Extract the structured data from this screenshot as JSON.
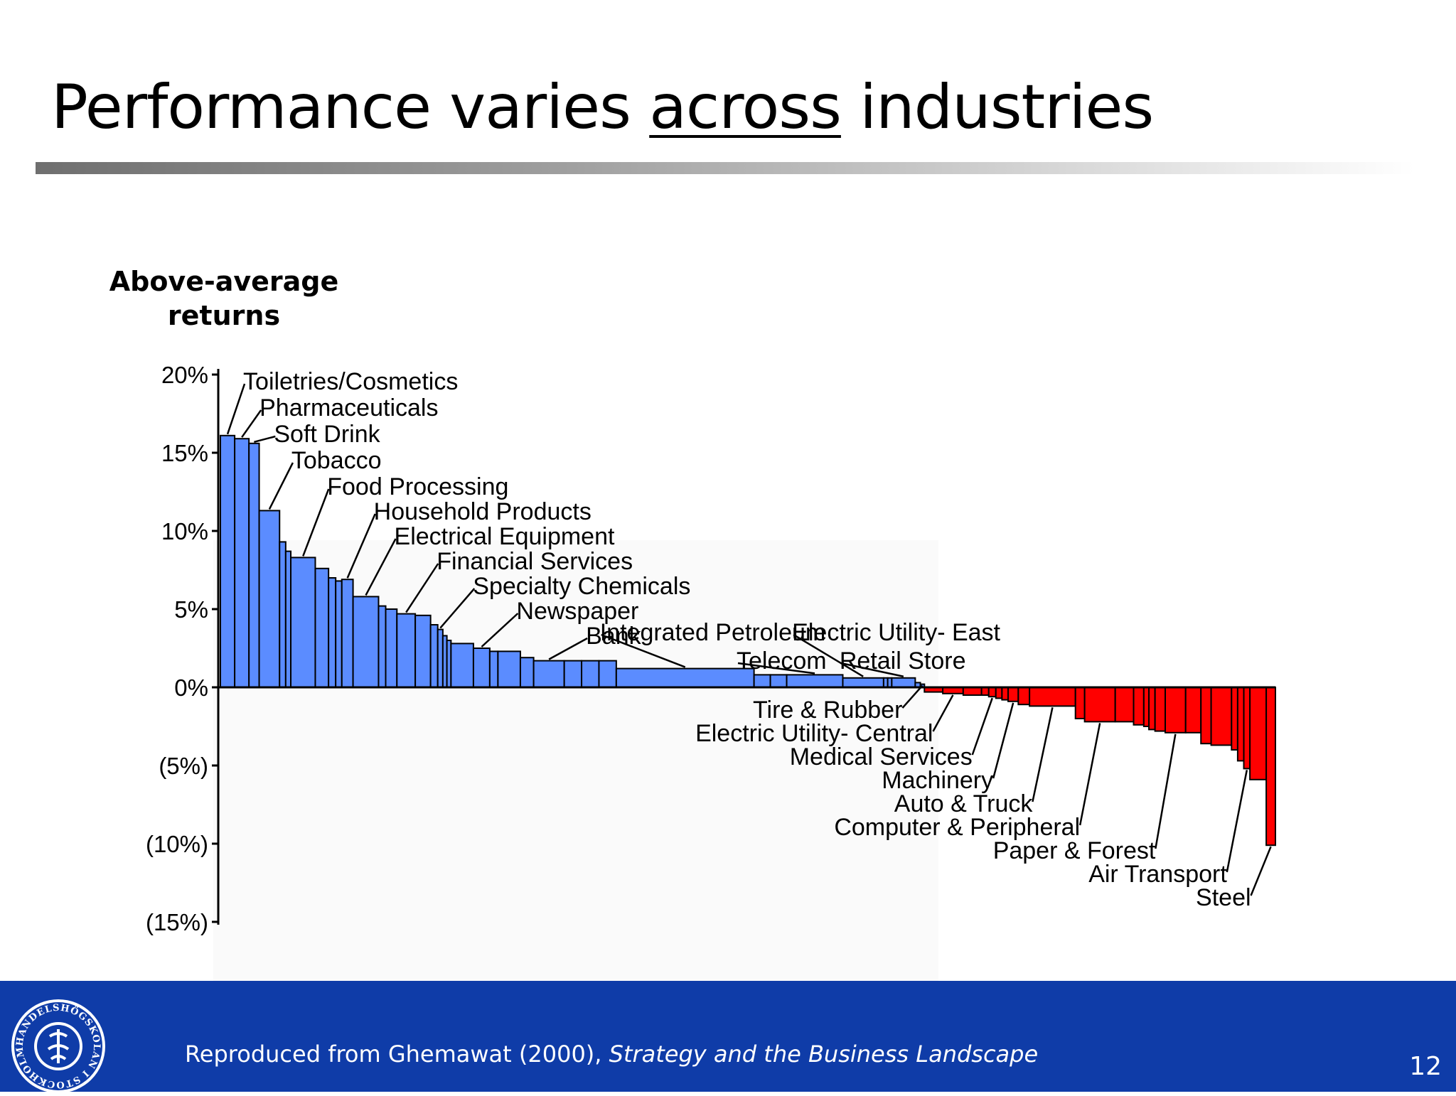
{
  "slide": {
    "title_before": "Performance varies ",
    "title_underlined": "across",
    "title_after": " industries",
    "page_number": "12"
  },
  "footer": {
    "source_prefix": "Reproduced from Ghemawat (2000), ",
    "source_title": "Strategy and the Business Landscape",
    "logo_text": "HANDELSHÖGSKOLAN I STOCKHOLM"
  },
  "colors": {
    "positive": "#5b8cff",
    "negative": "#ff0000",
    "footer": "#0f3ca8"
  },
  "chart_data": {
    "type": "bar",
    "title": "",
    "ylabel": "Above-average returns",
    "ylim": [
      -15,
      20
    ],
    "y_ticks": [
      20,
      15,
      10,
      5,
      0,
      -5,
      -10,
      -15
    ],
    "y_tick_labels": [
      "20%",
      "15%",
      "10%",
      "5%",
      "0%",
      "(5%)",
      "(10%)",
      "(15%)"
    ],
    "bar_width_meaning": "relative industry size",
    "grid": false,
    "legend": "none",
    "bars": [
      {
        "w": 1.4,
        "v": 16.1
      },
      {
        "w": 1.4,
        "v": 15.9
      },
      {
        "w": 1.0,
        "v": 15.6
      },
      {
        "w": 2.0,
        "v": 11.3
      },
      {
        "w": 0.6,
        "v": 9.3
      },
      {
        "w": 0.5,
        "v": 8.7
      },
      {
        "w": 2.4,
        "v": 8.3
      },
      {
        "w": 1.3,
        "v": 7.6
      },
      {
        "w": 0.7,
        "v": 7.0
      },
      {
        "w": 0.6,
        "v": 6.8
      },
      {
        "w": 1.1,
        "v": 6.9
      },
      {
        "w": 2.5,
        "v": 5.8
      },
      {
        "w": 0.7,
        "v": 5.2
      },
      {
        "w": 1.1,
        "v": 5.0
      },
      {
        "w": 1.8,
        "v": 4.7
      },
      {
        "w": 1.5,
        "v": 4.6
      },
      {
        "w": 0.7,
        "v": 4.0
      },
      {
        "w": 0.5,
        "v": 3.7
      },
      {
        "w": 0.4,
        "v": 3.3
      },
      {
        "w": 0.4,
        "v": 3.0
      },
      {
        "w": 2.2,
        "v": 2.8
      },
      {
        "w": 1.6,
        "v": 2.5
      },
      {
        "w": 0.8,
        "v": 2.3
      },
      {
        "w": 2.2,
        "v": 2.3
      },
      {
        "w": 1.3,
        "v": 1.9
      },
      {
        "w": 3.0,
        "v": 1.7
      },
      {
        "w": 1.7,
        "v": 1.7
      },
      {
        "w": 1.7,
        "v": 1.7
      },
      {
        "w": 1.7,
        "v": 1.7
      },
      {
        "w": 13.5,
        "v": 1.2
      },
      {
        "w": 1.6,
        "v": 0.8
      },
      {
        "w": 1.6,
        "v": 0.8
      },
      {
        "w": 5.5,
        "v": 0.8
      },
      {
        "w": 4.0,
        "v": 0.6
      },
      {
        "w": 0.4,
        "v": 0.6
      },
      {
        "w": 0.4,
        "v": 0.6
      },
      {
        "w": 2.3,
        "v": 0.6
      },
      {
        "w": 0.5,
        "v": 0.3
      },
      {
        "w": 0.4,
        "v": 0.2
      },
      {
        "w": 1.8,
        "v": -0.3
      },
      {
        "w": 2.0,
        "v": -0.4
      },
      {
        "w": 1.8,
        "v": -0.5
      },
      {
        "w": 0.7,
        "v": -0.5
      },
      {
        "w": 0.7,
        "v": -0.6
      },
      {
        "w": 0.6,
        "v": -0.7
      },
      {
        "w": 0.6,
        "v": -0.8
      },
      {
        "w": 1.0,
        "v": -0.9
      },
      {
        "w": 1.1,
        "v": -1.1
      },
      {
        "w": 4.5,
        "v": -1.2
      },
      {
        "w": 0.9,
        "v": -2.0
      },
      {
        "w": 3.0,
        "v": -2.2
      },
      {
        "w": 1.8,
        "v": -2.2
      },
      {
        "w": 1.0,
        "v": -2.4
      },
      {
        "w": 0.5,
        "v": -2.5
      },
      {
        "w": 0.6,
        "v": -2.7
      },
      {
        "w": 1.0,
        "v": -2.8
      },
      {
        "w": 2.0,
        "v": -2.9
      },
      {
        "w": 1.5,
        "v": -2.9
      },
      {
        "w": 1.0,
        "v": -3.6
      },
      {
        "w": 2.0,
        "v": -3.7
      },
      {
        "w": 0.6,
        "v": -4.0
      },
      {
        "w": 0.6,
        "v": -4.7
      },
      {
        "w": 0.6,
        "v": -5.2
      },
      {
        "w": 1.6,
        "v": -5.9
      },
      {
        "w": 0.9,
        "v": -10.1
      }
    ],
    "labels": [
      {
        "text": "Toiletries/Cosmetics",
        "bar": 0,
        "side": "up"
      },
      {
        "text": "Pharmaceuticals",
        "bar": 1,
        "side": "up"
      },
      {
        "text": "Soft Drink",
        "bar": 2,
        "side": "up"
      },
      {
        "text": "Tobacco",
        "bar": 3,
        "side": "up"
      },
      {
        "text": "Food Processing",
        "bar": 6,
        "side": "up"
      },
      {
        "text": "Household Products",
        "bar": 10,
        "side": "up"
      },
      {
        "text": "Electrical Equipment",
        "bar": 11,
        "side": "up"
      },
      {
        "text": "Financial Services",
        "bar": 14,
        "side": "up"
      },
      {
        "text": "Specialty Chemicals",
        "bar": 17,
        "side": "up"
      },
      {
        "text": "Newspaper",
        "bar": 21,
        "side": "up"
      },
      {
        "text": "Bank",
        "bar": 25,
        "side": "up"
      },
      {
        "text": "Integrated Petroleum",
        "bar": 29,
        "side": "up"
      },
      {
        "text": "Telecom",
        "bar": 32,
        "side": "up"
      },
      {
        "text": "Electric Utility- East",
        "bar": 33,
        "side": "up"
      },
      {
        "text": "Retail Store",
        "bar": 36,
        "side": "up"
      },
      {
        "text": "Tire & Rubber",
        "bar": 38,
        "side": "down"
      },
      {
        "text": "Electric Utility- Central",
        "bar": 40,
        "side": "down"
      },
      {
        "text": "Medical Services",
        "bar": 43,
        "side": "down"
      },
      {
        "text": "Machinery",
        "bar": 46,
        "side": "down"
      },
      {
        "text": "Auto & Truck",
        "bar": 48,
        "side": "down"
      },
      {
        "text": "Computer & Peripheral",
        "bar": 50,
        "side": "down"
      },
      {
        "text": "Paper & Forest",
        "bar": 56,
        "side": "down"
      },
      {
        "text": "Air Transport",
        "bar": 62,
        "side": "down"
      },
      {
        "text": "Steel",
        "bar": 64,
        "side": "down"
      }
    ]
  }
}
